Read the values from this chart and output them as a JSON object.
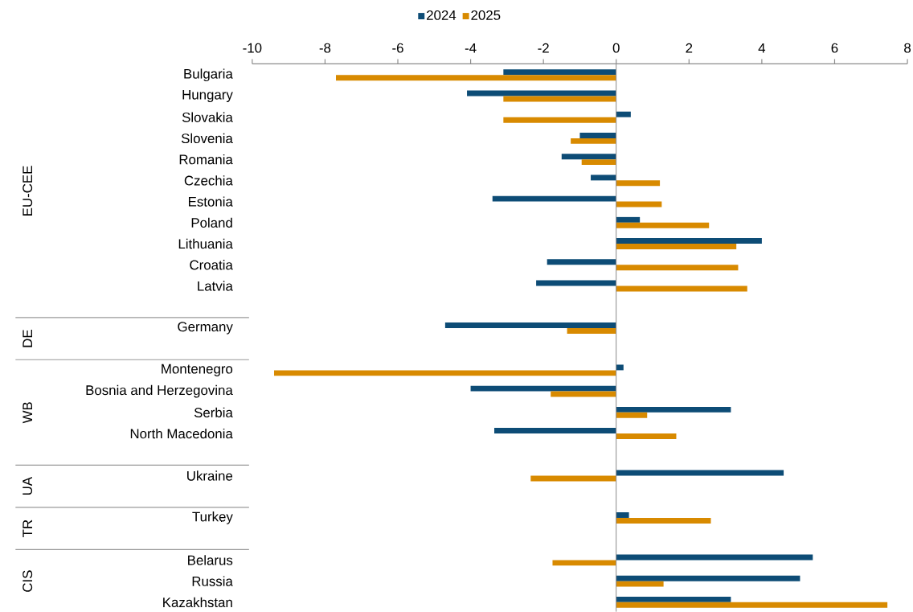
{
  "chart_data": {
    "type": "bar",
    "orientation": "horizontal",
    "categories": [
      "Bulgaria",
      "Hungary",
      "Slovakia",
      "Slovenia",
      "Romania",
      "Czechia",
      "Estonia",
      "Poland",
      "Lithuania",
      "Croatia",
      "Latvia",
      null,
      "Germany",
      null,
      "Montenegro",
      "Bosnia and Herzegovina",
      "Serbia",
      "North Macedonia",
      null,
      "Ukraine",
      null,
      "Turkey",
      null,
      "Belarus",
      "Russia",
      "Kazakhstan"
    ],
    "series": [
      {
        "name": "2024",
        "color": "#0d4c76",
        "values": [
          -3.1,
          -4.1,
          0.4,
          -1.0,
          -1.5,
          -0.7,
          -3.4,
          0.65,
          4.0,
          -1.9,
          -2.2,
          null,
          -4.7,
          null,
          0.2,
          -4.0,
          3.15,
          -3.35,
          null,
          4.6,
          null,
          0.35,
          null,
          5.4,
          5.05,
          3.15
        ]
      },
      {
        "name": "2025",
        "color": "#d88a00",
        "values": [
          -7.7,
          -3.1,
          -3.1,
          -1.25,
          -0.95,
          1.2,
          1.25,
          2.55,
          3.3,
          3.35,
          3.6,
          null,
          -1.35,
          null,
          -9.4,
          -1.8,
          0.85,
          1.65,
          null,
          -2.35,
          null,
          2.6,
          null,
          -1.75,
          1.3,
          7.45
        ]
      }
    ],
    "xlim": [
      -10,
      8
    ],
    "xticks": [
      -10,
      -8,
      -6,
      -4,
      -2,
      0,
      2,
      4,
      6,
      8
    ],
    "legend": "top",
    "annotations": [
      "EU-CEE",
      "DE",
      "WB",
      "UA",
      "TR",
      "CIS"
    ]
  }
}
